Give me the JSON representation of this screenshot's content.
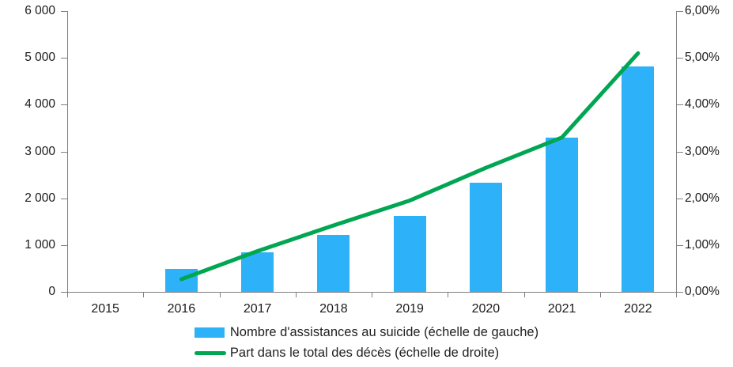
{
  "chart_data": {
    "type": "bar",
    "subtype": "combo-bar-line",
    "title": "",
    "categories": [
      "2015",
      "2016",
      "2017",
      "2018",
      "2019",
      "2020",
      "2021",
      "2022"
    ],
    "series": [
      {
        "name": "Nombre d'assistances au suicide (échelle de gauche)",
        "type": "bar",
        "axis": "left",
        "color": "#2DB2FA",
        "values": [
          null,
          490,
          840,
          1220,
          1620,
          2340,
          3300,
          4810
        ]
      },
      {
        "name": "Part dans le total des décès (échelle de droite)",
        "type": "line",
        "axis": "right",
        "color": "#00A651",
        "values": [
          null,
          0.27,
          0.87,
          1.42,
          1.95,
          2.65,
          3.3,
          5.1
        ]
      }
    ],
    "left_axis": {
      "min": 0,
      "max": 6000,
      "step": 1000,
      "tick_labels": [
        "0",
        "1 000",
        "2 000",
        "3 000",
        "4 000",
        "5 000",
        "6 000"
      ]
    },
    "right_axis": {
      "min": 0,
      "max": 6,
      "step": 1,
      "tick_labels": [
        "0,00%",
        "1,00%",
        "2,00%",
        "3,00%",
        "4,00%",
        "5,00%",
        "6,00%"
      ]
    },
    "grid": false,
    "legend_position": "bottom"
  },
  "legend": {
    "bar_label": "Nombre d'assistances au suicide (échelle de gauche)",
    "line_label": "Part dans le total des décès (échelle de droite)"
  },
  "colors": {
    "bar": "#2DB2FA",
    "line": "#00A651",
    "axis": "#808080",
    "text": "#1a1a1a"
  }
}
